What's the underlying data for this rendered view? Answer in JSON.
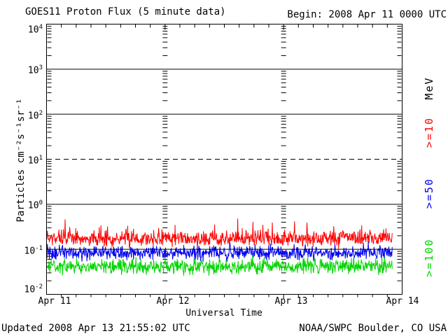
{
  "header": {
    "title": "GOES11 Proton Flux (5 minute data)",
    "begin_label": "Begin: 2008 Apr 11 0000 UTC"
  },
  "footer": {
    "updated": "Updated 2008 Apr 13 21:55:02 UTC",
    "source": "NOAA/SWPC Boulder, CO USA"
  },
  "chart_data": {
    "type": "line",
    "title": "GOES11 Proton Flux (5 minute data)",
    "xlabel": "Universal Time",
    "ylabel": "Particles cm⁻²s⁻¹sr⁻¹",
    "right_axis_label": "MeV",
    "x_ticks": [
      "Apr 11",
      "Apr 12",
      "Apr 13",
      "Apr 14"
    ],
    "x_days": 3,
    "minor_x_ticks_per_day": 8,
    "y_ticks": [
      "10^4",
      "10^3",
      "10^2",
      "10^1",
      "10^0",
      "10^-1",
      "10^-2"
    ],
    "ylim_log10": [
      -2,
      4
    ],
    "grid_solid_log10": [
      3,
      2,
      0,
      -1
    ],
    "grid_dashed_log10": [
      1
    ],
    "interior_day_boundaries_have_log_minor_ticks": true,
    "legend_position": "right-rotated",
    "legend": [
      {
        "label": ">=10",
        "color": "#ff0000"
      },
      {
        "label": ">=50",
        "color": "#0000ee"
      },
      {
        "label": ">=100",
        "color": "#00d400"
      }
    ],
    "series": [
      {
        "name": ">=10 MeV",
        "color": "#ff0000",
        "approx_mean_flux": 0.17,
        "approx_min": 0.09,
        "approx_max": 0.6,
        "gen": {
          "log10_mean": -0.76,
          "log10_amp": 0.26,
          "spike_prob": 0.08,
          "spike_extra": 0.3,
          "seed": 7
        }
      },
      {
        "name": ">=50 MeV",
        "color": "#0000ee",
        "approx_mean_flux": 0.083,
        "approx_min": 0.045,
        "approx_max": 0.2,
        "gen": {
          "log10_mean": -1.08,
          "log10_amp": 0.24,
          "spike_prob": 0.05,
          "spike_extra": 0.12,
          "seed": 42
        }
      },
      {
        "name": ">=100 MeV",
        "color": "#00d400",
        "approx_mean_flux": 0.042,
        "approx_min": 0.022,
        "approx_max": 0.1,
        "gen": {
          "log10_mean": -1.38,
          "log10_amp": 0.25,
          "spike_prob": 0.04,
          "spike_extra": 0.1,
          "seed": 1337
        }
      }
    ],
    "points_per_series": 840,
    "data_fraction_of_xrange": 0.972
  }
}
